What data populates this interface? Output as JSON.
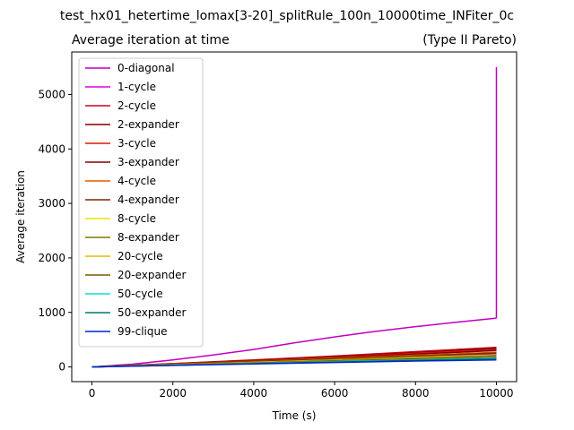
{
  "chart_data": {
    "type": "line",
    "suptitle": "test_hx01_hetertime_lomax[3-20]_splitRule_100n_10000time_INFiter_0c",
    "title_left": "Average iteration at time",
    "title_right": "(Type II Pareto)",
    "xlabel": "Time (s)",
    "ylabel": "Average iteration",
    "xlim": [
      -500,
      10500
    ],
    "ylim": [
      -270,
      5780
    ],
    "xticks": [
      0,
      2000,
      4000,
      6000,
      8000,
      10000
    ],
    "yticks": [
      0,
      1000,
      2000,
      3000,
      4000,
      5000
    ],
    "legend_position": "upper-left",
    "grid": false,
    "series": [
      {
        "name": "0-diagonal",
        "color": "#bf00bf",
        "x": [
          0,
          1000,
          2000,
          3000,
          4000,
          5000,
          6000,
          7000,
          8000,
          9000,
          9950,
          10000,
          10000
        ],
        "y": [
          0,
          50,
          130,
          220,
          320,
          440,
          550,
          650,
          740,
          820,
          890,
          900,
          5500
        ]
      },
      {
        "name": "1-cycle",
        "color": "#e600e6",
        "x": [
          0,
          2000,
          4000,
          6000,
          8000,
          10000
        ],
        "y": [
          0,
          40,
          90,
          140,
          190,
          240
        ]
      },
      {
        "name": "2-cycle",
        "color": "#cc0022",
        "x": [
          0,
          2000,
          4000,
          6000,
          8000,
          10000
        ],
        "y": [
          0,
          60,
          130,
          200,
          280,
          360
        ]
      },
      {
        "name": "2-expander",
        "color": "#7a0000",
        "x": [
          0,
          2000,
          4000,
          6000,
          8000,
          10000
        ],
        "y": [
          0,
          55,
          120,
          190,
          260,
          340
        ]
      },
      {
        "name": "3-cycle",
        "color": "#dd1a00",
        "x": [
          0,
          2000,
          4000,
          6000,
          8000,
          10000
        ],
        "y": [
          0,
          60,
          120,
          185,
          250,
          320
        ]
      },
      {
        "name": "3-expander",
        "color": "#800000",
        "x": [
          0,
          2000,
          4000,
          6000,
          8000,
          10000
        ],
        "y": [
          0,
          55,
          115,
          175,
          235,
          300
        ]
      },
      {
        "name": "4-cycle",
        "color": "#e65c00",
        "x": [
          0,
          2000,
          4000,
          6000,
          8000,
          10000
        ],
        "y": [
          0,
          50,
          105,
          160,
          215,
          270
        ]
      },
      {
        "name": "4-expander",
        "color": "#7a2a00",
        "x": [
          0,
          2000,
          4000,
          6000,
          8000,
          10000
        ],
        "y": [
          0,
          48,
          100,
          150,
          200,
          255
        ]
      },
      {
        "name": "8-cycle",
        "color": "#e6e600",
        "x": [
          0,
          2000,
          4000,
          6000,
          8000,
          10000
        ],
        "y": [
          0,
          42,
          85,
          130,
          175,
          220
        ]
      },
      {
        "name": "8-expander",
        "color": "#7a7a00",
        "x": [
          0,
          2000,
          4000,
          6000,
          8000,
          10000
        ],
        "y": [
          0,
          40,
          80,
          125,
          165,
          210
        ]
      },
      {
        "name": "20-cycle",
        "color": "#e6b800",
        "x": [
          0,
          2000,
          4000,
          6000,
          8000,
          10000
        ],
        "y": [
          0,
          38,
          78,
          118,
          158,
          195
        ]
      },
      {
        "name": "20-expander",
        "color": "#7a5c00",
        "x": [
          0,
          2000,
          4000,
          6000,
          8000,
          10000
        ],
        "y": [
          0,
          36,
          74,
          112,
          150,
          185
        ]
      },
      {
        "name": "50-cycle",
        "color": "#00e6cc",
        "x": [
          0,
          2000,
          4000,
          6000,
          8000,
          10000
        ],
        "y": [
          0,
          32,
          65,
          98,
          130,
          160
        ]
      },
      {
        "name": "50-expander",
        "color": "#007a66",
        "x": [
          0,
          2000,
          4000,
          6000,
          8000,
          10000
        ],
        "y": [
          0,
          30,
          60,
          92,
          122,
          150
        ]
      },
      {
        "name": "99-clique",
        "color": "#0022cc",
        "x": [
          0,
          2000,
          4000,
          6000,
          8000,
          10000
        ],
        "y": [
          0,
          28,
          55,
          82,
          108,
          130
        ]
      }
    ]
  }
}
